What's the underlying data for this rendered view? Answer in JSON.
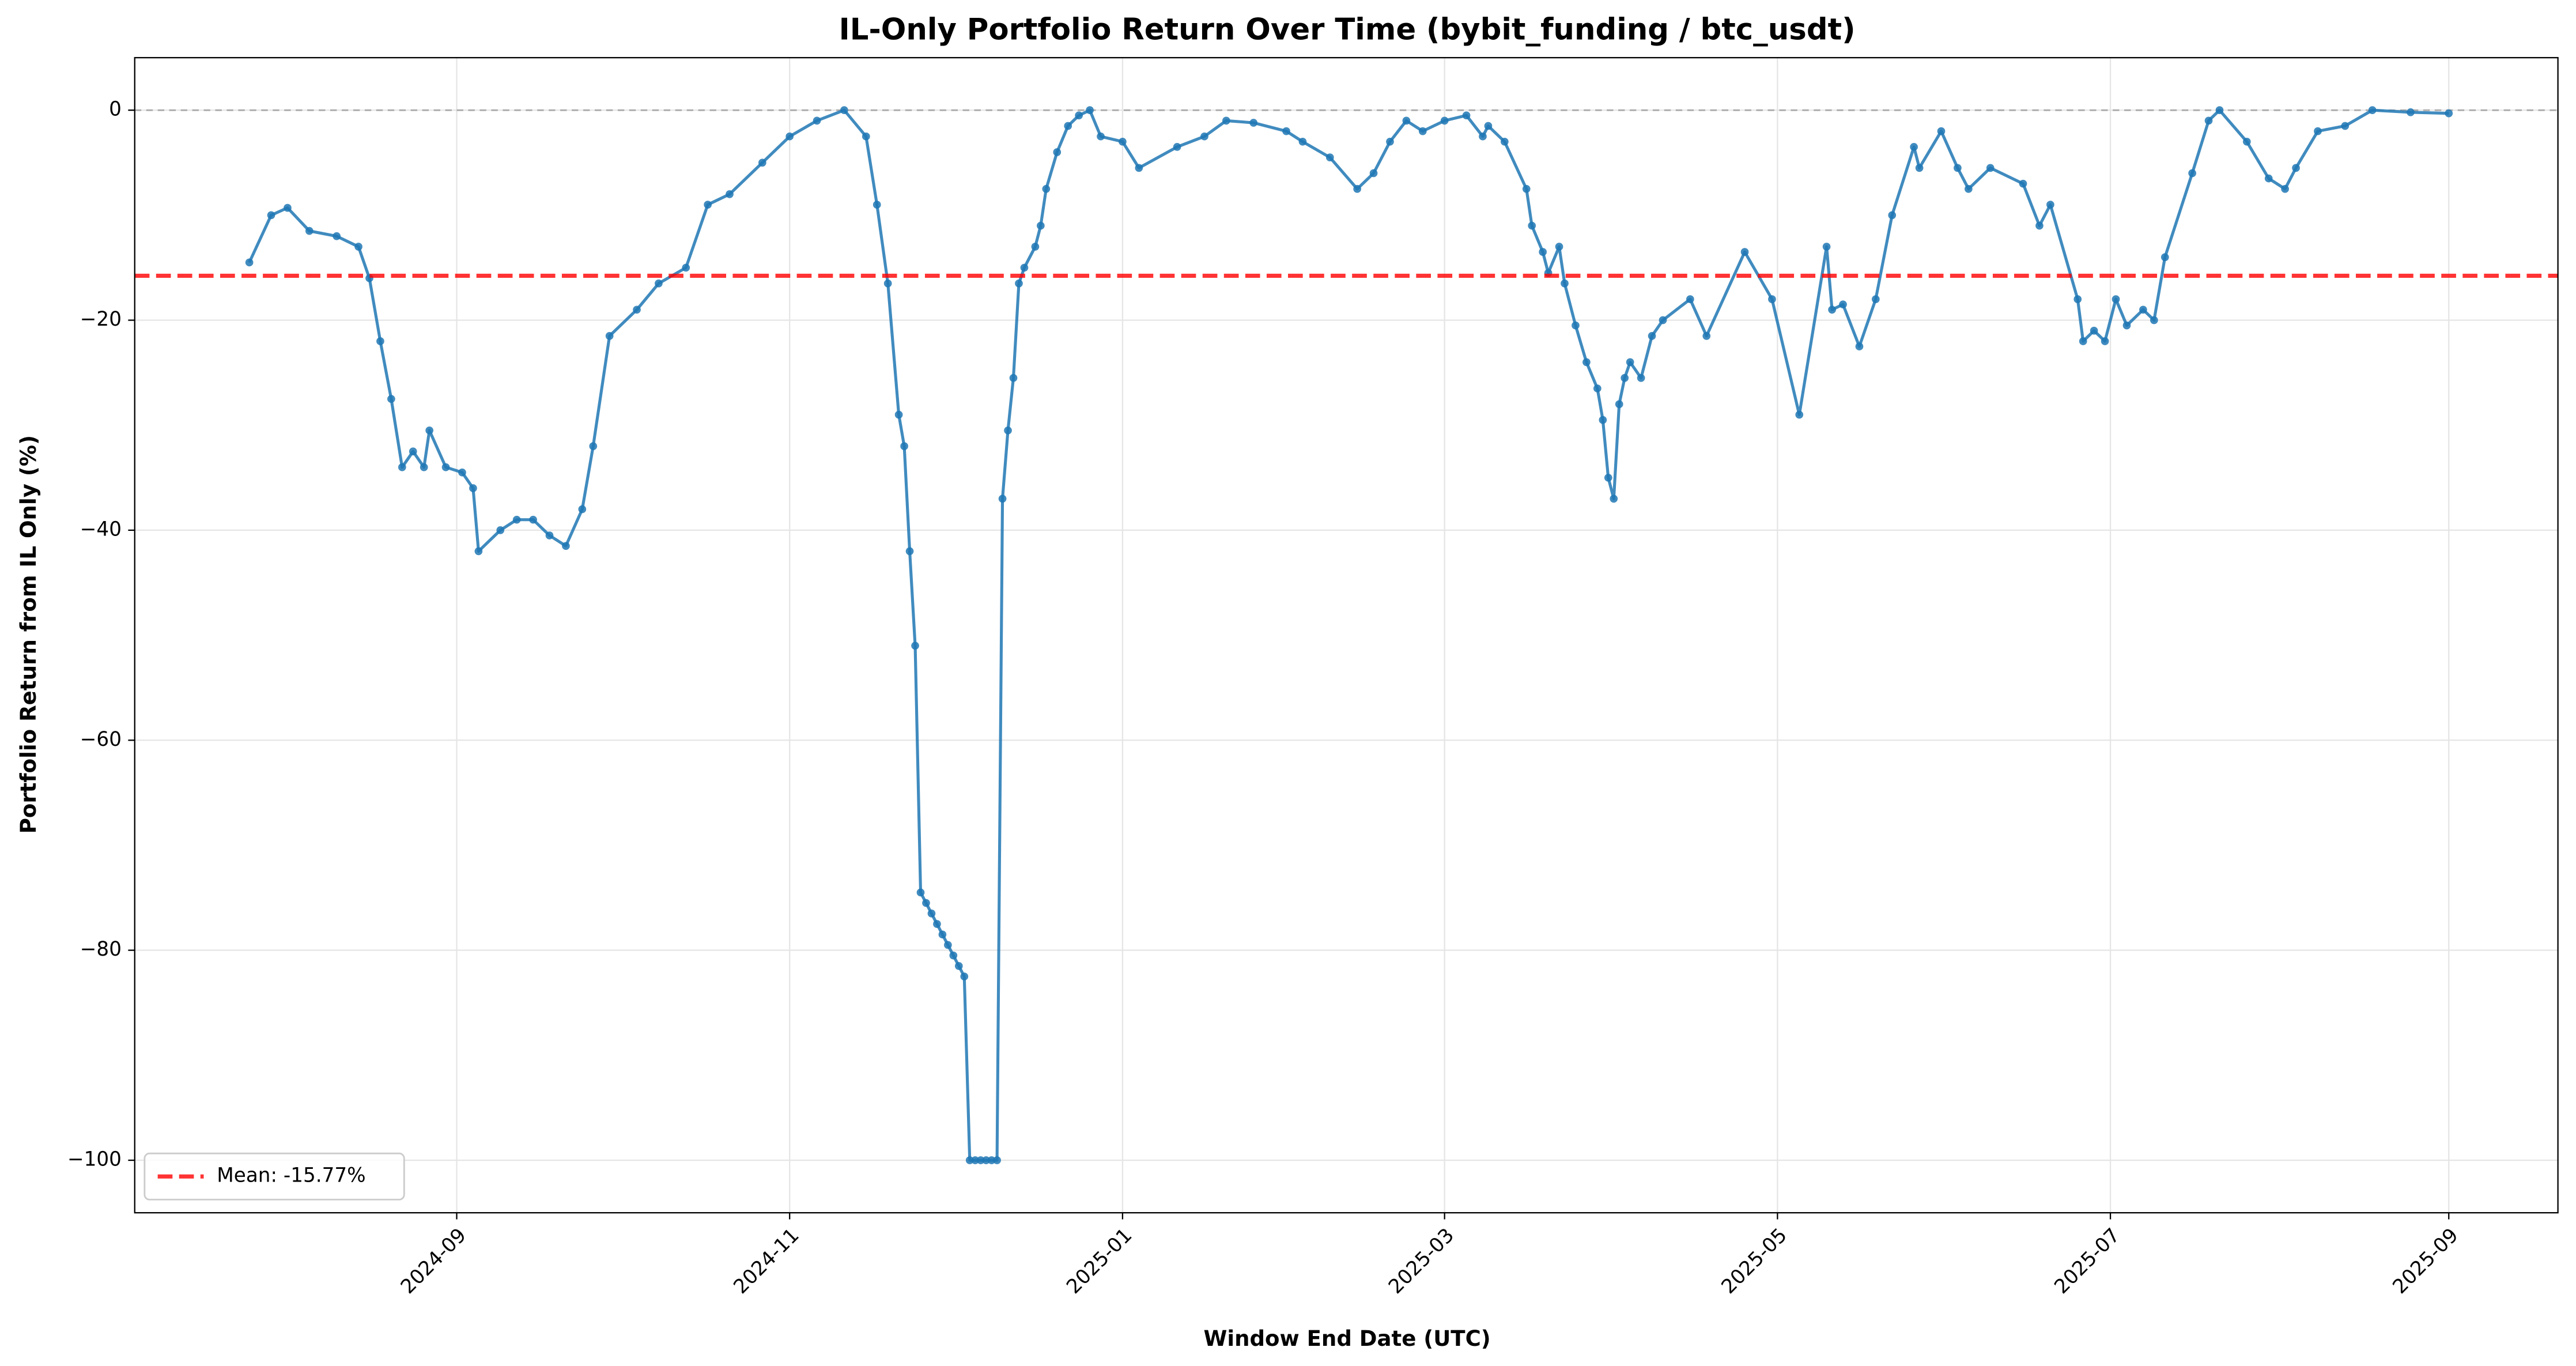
{
  "chart_data": {
    "type": "line",
    "title": "IL-Only Portfolio Return Over Time (bybit_funding / btc_usdt)",
    "xlabel": "Window End Date (UTC)",
    "ylabel": "Portfolio Return from IL Only (%)",
    "x": [
      "2024-07-25",
      "2024-07-29",
      "2024-08-01",
      "2024-08-05",
      "2024-08-10",
      "2024-08-14",
      "2024-08-16",
      "2024-08-18",
      "2024-08-20",
      "2024-08-22",
      "2024-08-24",
      "2024-08-26",
      "2024-08-27",
      "2024-08-30",
      "2024-09-02",
      "2024-09-04",
      "2024-09-05",
      "2024-09-09",
      "2024-09-12",
      "2024-09-15",
      "2024-09-18",
      "2024-09-21",
      "2024-09-24",
      "2024-09-26",
      "2024-09-29",
      "2024-10-04",
      "2024-10-08",
      "2024-10-13",
      "2024-10-17",
      "2024-10-21",
      "2024-10-27",
      "2024-11-01",
      "2024-11-06",
      "2024-11-11",
      "2024-11-15",
      "2024-11-17",
      "2024-11-19",
      "2024-11-21",
      "2024-11-22",
      "2024-11-23",
      "2024-11-24",
      "2024-11-25",
      "2024-11-26",
      "2024-11-27",
      "2024-11-28",
      "2024-11-29",
      "2024-11-30",
      "2024-12-01",
      "2024-12-02",
      "2024-12-03",
      "2024-12-04",
      "2024-12-05",
      "2024-12-06",
      "2024-12-07",
      "2024-12-08",
      "2024-12-09",
      "2024-12-10",
      "2024-12-11",
      "2024-12-12",
      "2024-12-13",
      "2024-12-14",
      "2024-12-16",
      "2024-12-17",
      "2024-12-18",
      "2024-12-20",
      "2024-12-22",
      "2024-12-24",
      "2024-12-26",
      "2024-12-28",
      "2025-01-01",
      "2025-01-04",
      "2025-01-11",
      "2025-01-16",
      "2025-01-20",
      "2025-01-25",
      "2025-01-31",
      "2025-02-03",
      "2025-02-08",
      "2025-02-13",
      "2025-02-16",
      "2025-02-19",
      "2025-02-22",
      "2025-02-25",
      "2025-03-01",
      "2025-03-05",
      "2025-03-08",
      "2025-03-09",
      "2025-03-12",
      "2025-03-16",
      "2025-03-17",
      "2025-03-19",
      "2025-03-20",
      "2025-03-22",
      "2025-03-23",
      "2025-03-25",
      "2025-03-27",
      "2025-03-29",
      "2025-03-30",
      "2025-03-31",
      "2025-04-01",
      "2025-04-02",
      "2025-04-03",
      "2025-04-04",
      "2025-04-06",
      "2025-04-08",
      "2025-04-10",
      "2025-04-15",
      "2025-04-18",
      "2025-04-25",
      "2025-04-30",
      "2025-05-05",
      "2025-05-10",
      "2025-05-11",
      "2025-05-13",
      "2025-05-16",
      "2025-05-19",
      "2025-05-22",
      "2025-05-26",
      "2025-05-27",
      "2025-05-31",
      "2025-06-03",
      "2025-06-05",
      "2025-06-09",
      "2025-06-15",
      "2025-06-18",
      "2025-06-20",
      "2025-06-25",
      "2025-06-26",
      "2025-06-28",
      "2025-06-30",
      "2025-07-02",
      "2025-07-04",
      "2025-07-07",
      "2025-07-09",
      "2025-07-11",
      "2025-07-16",
      "2025-07-19",
      "2025-07-21",
      "2025-07-26",
      "2025-07-30",
      "2025-08-02",
      "2025-08-04",
      "2025-08-08",
      "2025-08-13",
      "2025-08-18",
      "2025-08-25",
      "2025-09-01"
    ],
    "series": [
      {
        "color": "#1f77b4",
        "values": [
          -14.5,
          -10,
          -9.3,
          -11.5,
          -12,
          -13,
          -16,
          -22,
          -27.5,
          -34,
          -32.5,
          -34,
          -30.5,
          -34,
          -34.5,
          -36,
          -42,
          -40,
          -39,
          -39,
          -40.5,
          -41.5,
          -38,
          -32,
          -21.5,
          -19,
          -16.5,
          -15,
          -9,
          -8,
          -5,
          -2.5,
          -1,
          0,
          -2.5,
          -9,
          -16.5,
          -29,
          -32,
          -42,
          -51,
          -74.5,
          -75.5,
          -76.5,
          -77.5,
          -78.5,
          -79.5,
          -80.5,
          -81.5,
          -82.5,
          -100,
          -100,
          -100,
          -100,
          -100,
          -100,
          -37,
          -30.5,
          -25.5,
          -16.5,
          -15,
          -13,
          -11,
          -7.5,
          -4,
          -1.5,
          -0.5,
          0,
          -2.5,
          -3,
          -5.5,
          -3.5,
          -2.5,
          -1,
          -1.2,
          -2,
          -3,
          -4.5,
          -7.5,
          -6,
          -3,
          -1,
          -2,
          -1,
          -0.5,
          -2.5,
          -1.5,
          -3,
          -7.5,
          -11,
          -13.5,
          -15.5,
          -13,
          -16.5,
          -20.5,
          -24,
          -26.5,
          -29.5,
          -35,
          -37,
          -28,
          -25.5,
          -24,
          -25.5,
          -21.5,
          -20,
          -18,
          -21.5,
          -13.5,
          -18,
          -29,
          -13,
          -19,
          -18.5,
          -22.5,
          -18,
          -10,
          -3.5,
          -5.5,
          -2,
          -5.5,
          -7.5,
          -5.5,
          -7,
          -11,
          -9,
          -18,
          -22,
          -21,
          -22,
          -18,
          -20.5,
          -19,
          -20,
          -14,
          -6,
          -1,
          0,
          -3,
          -6.5,
          -7.5,
          -5.5,
          -2,
          -1.5,
          0,
          -0.2,
          -0.3
        ]
      }
    ],
    "reference_lines": [
      {
        "value": -15.77,
        "label": "Mean: -15.77%",
        "color": "#ff0000"
      }
    ],
    "baseline": 0,
    "xlim": [
      "2024-07-04",
      "2025-09-21"
    ],
    "xticks": [
      {
        "value": "2024-09-01",
        "label": "2024-09"
      },
      {
        "value": "2024-11-01",
        "label": "2024-11"
      },
      {
        "value": "2025-01-01",
        "label": "2025-01"
      },
      {
        "value": "2025-03-01",
        "label": "2025-03"
      },
      {
        "value": "2025-05-01",
        "label": "2025-05"
      },
      {
        "value": "2025-07-01",
        "label": "2025-07"
      },
      {
        "value": "2025-09-01",
        "label": "2025-09"
      }
    ],
    "ylim": [
      -105,
      5
    ],
    "yticks": [
      {
        "value": -100,
        "label": "−100"
      },
      {
        "value": -80,
        "label": "−80"
      },
      {
        "value": -60,
        "label": "−60"
      },
      {
        "value": -40,
        "label": "−40"
      },
      {
        "value": -20,
        "label": "−20"
      },
      0
    ],
    "grid": true,
    "legend": "lower left"
  }
}
